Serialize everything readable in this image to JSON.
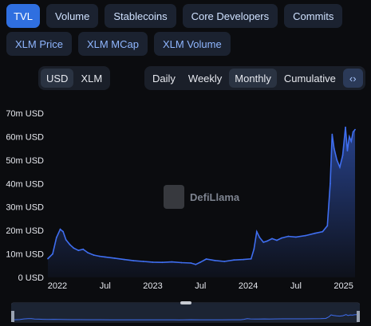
{
  "tabs_row1": [
    {
      "label": "TVL",
      "active": true
    },
    {
      "label": "Volume",
      "active": false
    },
    {
      "label": "Stablecoins",
      "active": false
    },
    {
      "label": "Core Developers",
      "active": false
    },
    {
      "label": "Commits",
      "active": false
    }
  ],
  "tabs_row2": [
    {
      "label": "XLM Price"
    },
    {
      "label": "XLM MCap"
    },
    {
      "label": "XLM Volume"
    }
  ],
  "currency": {
    "options": [
      "USD",
      "XLM"
    ],
    "selected": "USD"
  },
  "period": {
    "options": [
      "Daily",
      "Weekly",
      "Monthly",
      "Cumulative"
    ],
    "selected": "Monthly",
    "embed_icon": "code-icon"
  },
  "watermark": "DefiLlama",
  "colors": {
    "line": "#3f6ef0",
    "accent": "#2f6fe0",
    "bg": "#0b0c0f"
  },
  "chart_data": {
    "type": "area",
    "y_ticks": [
      "0 USD",
      "10m USD",
      "20m USD",
      "30m USD",
      "40m USD",
      "50m USD",
      "60m USD",
      "70m USD"
    ],
    "ylim": [
      0,
      70
    ],
    "y_unit": "m USD",
    "x_ticks": [
      {
        "label": "2022",
        "t": 2022.0
      },
      {
        "label": "Jul",
        "t": 2022.5
      },
      {
        "label": "2023",
        "t": 2023.0
      },
      {
        "label": "Jul",
        "t": 2023.5
      },
      {
        "label": "2024",
        "t": 2024.0
      },
      {
        "label": "Jul",
        "t": 2024.5
      },
      {
        "label": "2025",
        "t": 2025.0
      }
    ],
    "xlim": [
      2021.9,
      2025.12
    ],
    "series": [
      {
        "points": [
          [
            2021.9,
            8
          ],
          [
            2021.95,
            10
          ],
          [
            2021.99,
            17
          ],
          [
            2022.03,
            20.5
          ],
          [
            2022.06,
            19.5
          ],
          [
            2022.09,
            16
          ],
          [
            2022.13,
            14
          ],
          [
            2022.17,
            12.5
          ],
          [
            2022.22,
            11.5
          ],
          [
            2022.27,
            12
          ],
          [
            2022.32,
            10.5
          ],
          [
            2022.38,
            9.5
          ],
          [
            2022.44,
            9
          ],
          [
            2022.5,
            8.7
          ],
          [
            2022.6,
            8.2
          ],
          [
            2022.7,
            7.6
          ],
          [
            2022.8,
            7.1
          ],
          [
            2022.9,
            6.8
          ],
          [
            2023.0,
            6.5
          ],
          [
            2023.1,
            6.4
          ],
          [
            2023.2,
            6.6
          ],
          [
            2023.3,
            6.3
          ],
          [
            2023.4,
            6.1
          ],
          [
            2023.45,
            5.5
          ],
          [
            2023.5,
            6.5
          ],
          [
            2023.56,
            7.8
          ],
          [
            2023.65,
            7.2
          ],
          [
            2023.75,
            6.8
          ],
          [
            2023.85,
            7.4
          ],
          [
            2023.95,
            7.6
          ],
          [
            2024.03,
            7.9
          ],
          [
            2024.06,
            12
          ],
          [
            2024.09,
            19.5
          ],
          [
            2024.12,
            17
          ],
          [
            2024.16,
            15
          ],
          [
            2024.2,
            15.5
          ],
          [
            2024.25,
            16.5
          ],
          [
            2024.3,
            15.8
          ],
          [
            2024.35,
            16.8
          ],
          [
            2024.42,
            17.5
          ],
          [
            2024.5,
            17.2
          ],
          [
            2024.6,
            17.8
          ],
          [
            2024.7,
            18.8
          ],
          [
            2024.78,
            19.5
          ],
          [
            2024.83,
            22
          ],
          [
            2024.86,
            40
          ],
          [
            2024.88,
            61
          ],
          [
            2024.9,
            55
          ],
          [
            2024.93,
            50
          ],
          [
            2024.96,
            47
          ],
          [
            2024.99,
            52
          ],
          [
            2025.02,
            64
          ],
          [
            2025.04,
            54
          ],
          [
            2025.06,
            60
          ],
          [
            2025.08,
            58
          ],
          [
            2025.1,
            62
          ],
          [
            2025.12,
            63
          ]
        ]
      }
    ]
  }
}
